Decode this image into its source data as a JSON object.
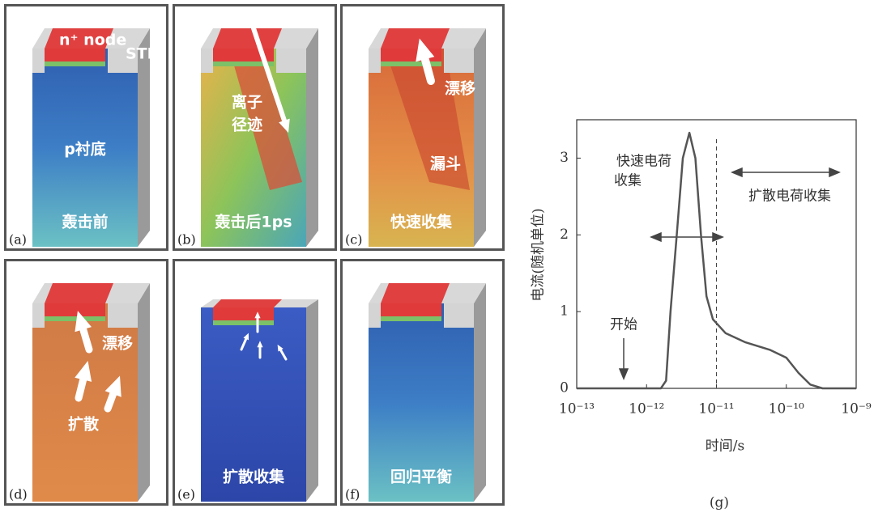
{
  "panels": [
    {
      "letter": "(a)",
      "caption": "轰击前",
      "texts": [
        "n⁺ node",
        "STI",
        "p衬底"
      ]
    },
    {
      "letter": "(b)",
      "caption": "轰击后1ps",
      "texts": [
        "离子",
        "径迹"
      ]
    },
    {
      "letter": "(c)",
      "caption": "快速收集",
      "texts": [
        "漂移",
        "漏斗"
      ]
    },
    {
      "letter": "(d)",
      "texts": [
        "漂移",
        "扩散"
      ]
    },
    {
      "letter": "(e)",
      "caption": "扩散收集",
      "texts": []
    },
    {
      "letter": "(f)",
      "caption": "回归平衡",
      "texts": []
    }
  ],
  "chart_data": {
    "type": "line",
    "caption": "(g)",
    "xlabel": "时间/s",
    "ylabel": "电流(随机单位)",
    "annotations": [
      "快速电荷",
      "收集",
      "扩散电荷收集",
      "开始"
    ],
    "xscale": "log",
    "color": "#555555",
    "x": [
      1e-13,
      1.6e-12,
      1.9e-12,
      2.2e-12,
      2.7e-12,
      3.3e-12,
      4.1e-12,
      5e-12,
      6e-12,
      7.2e-12,
      8.9e-12,
      1.35e-11,
      2.6e-11,
      5.9e-11,
      1e-10,
      1.5e-10,
      2.2e-10,
      3.3e-10,
      1e-09
    ],
    "values": [
      0,
      0,
      0.1,
      1,
      2,
      3,
      3.33,
      3,
      2,
      1.2,
      0.9,
      0.72,
      0.6,
      0.5,
      0.4,
      0.2,
      0.05,
      0,
      0
    ],
    "xlim": [
      1e-13,
      1e-09
    ],
    "xticks": [
      {
        "value": 1e-13,
        "label": "10⁻¹³"
      },
      {
        "value": 1e-12,
        "label": "10⁻¹²"
      },
      {
        "value": 1e-11,
        "label": "10⁻¹¹"
      },
      {
        "value": 1e-10,
        "label": "10⁻¹⁰"
      },
      {
        "value": 1e-09,
        "label": "10⁻⁹"
      }
    ],
    "ylim": [
      0,
      3.5
    ],
    "yticks": [
      0,
      1,
      2,
      3
    ]
  }
}
